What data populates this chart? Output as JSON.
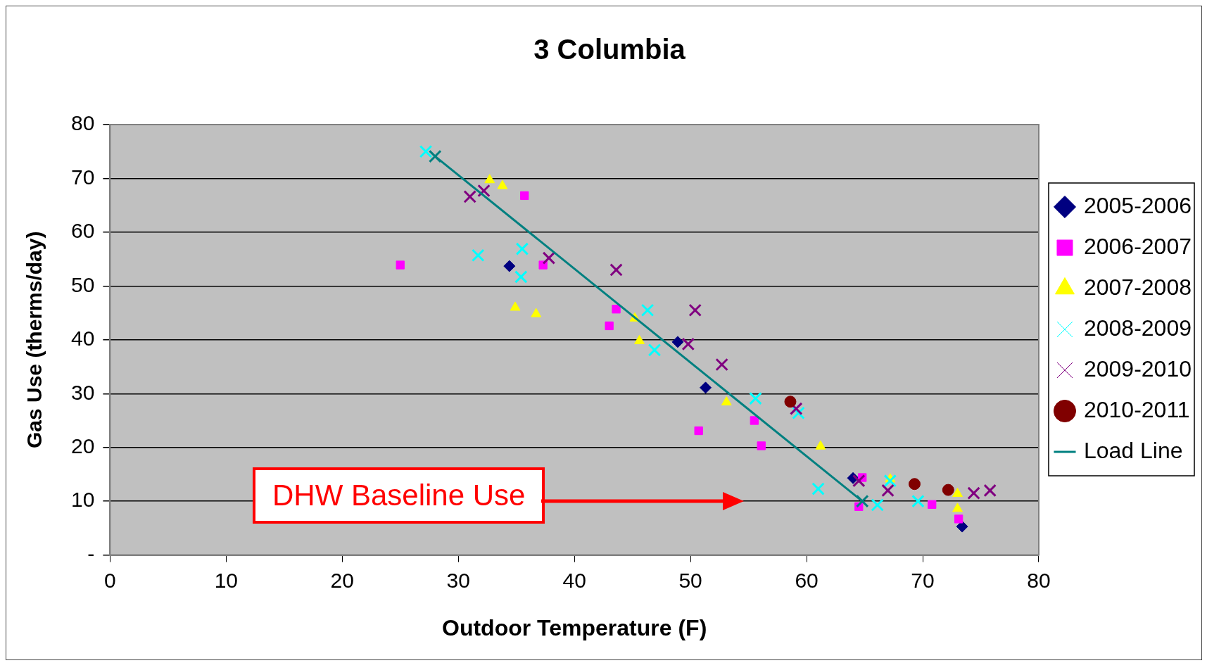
{
  "chart_data": {
    "type": "scatter",
    "title": "3 Columbia",
    "xlabel": "Outdoor Temperature (F)",
    "ylabel": "Gas Use (therms/day)",
    "xlim": [
      0,
      80
    ],
    "xticks": [
      0,
      10,
      20,
      30,
      40,
      50,
      60,
      70,
      80
    ],
    "ylim": [
      0,
      80
    ],
    "yticks": [
      {
        "value": 0,
        "label": "-"
      },
      10,
      20,
      30,
      40,
      50,
      60,
      70,
      80
    ],
    "grid": "y",
    "legend": "right",
    "annotations": [
      "DHW Baseline Use"
    ],
    "series": [
      {
        "name": "2005-2006",
        "color": "#000080",
        "marker": "diamond",
        "x": [
          34.4,
          48.9,
          51.3,
          64.0,
          73.4
        ],
        "values": [
          53.7,
          39.6,
          31.1,
          14.3,
          5.3
        ]
      },
      {
        "name": "2006-2007",
        "color": "#ff00ff",
        "marker": "square",
        "x": [
          25.0,
          35.7,
          37.3,
          43.0,
          43.6,
          50.7,
          55.5,
          56.1,
          64.8,
          64.5,
          70.8,
          73.1
        ],
        "values": [
          53.9,
          66.8,
          53.9,
          42.6,
          45.7,
          23.1,
          25.0,
          20.3,
          14.4,
          9.0,
          9.4,
          6.7
        ]
      },
      {
        "name": "2007-2008",
        "color": "#ffff00",
        "marker": "triangle",
        "x": [
          32.7,
          33.8,
          34.9,
          36.7,
          45.2,
          45.6,
          53.1,
          61.2,
          67.2,
          73.0,
          73.0
        ],
        "values": [
          69.7,
          68.6,
          46.0,
          44.8,
          44.0,
          39.8,
          28.4,
          20.2,
          14.1,
          11.4,
          8.6
        ]
      },
      {
        "name": "2008-2009",
        "color": "#00ffff",
        "marker": "cross",
        "x": [
          27.2,
          31.7,
          35.4,
          35.5,
          46.3,
          46.9,
          55.6,
          59.3,
          61.0,
          66.1,
          67.2,
          69.6
        ],
        "values": [
          75.0,
          55.7,
          51.7,
          56.9,
          45.5,
          38.1,
          29.1,
          26.4,
          12.3,
          9.3,
          13.8,
          10.0
        ]
      },
      {
        "name": "2009-2010",
        "color": "#800080",
        "marker": "cross",
        "x": [
          31.0,
          32.2,
          37.8,
          43.6,
          50.4,
          49.8,
          52.7,
          59.1,
          64.5,
          67.0,
          74.4,
          75.8
        ],
        "values": [
          66.6,
          67.7,
          55.2,
          53.0,
          45.5,
          39.2,
          35.4,
          27.2,
          13.8,
          12.0,
          11.5,
          12.0
        ]
      },
      {
        "name": "2010-2011",
        "color": "#800000",
        "marker": "circle",
        "x": [
          58.6,
          69.3,
          72.2
        ],
        "values": [
          28.5,
          13.2,
          12.1
        ]
      },
      {
        "name": "Load Line",
        "type": "line",
        "color": "#008080",
        "marker": "cross",
        "x": [
          28.0,
          64.8
        ],
        "values": [
          74.1,
          10.0
        ]
      }
    ]
  }
}
